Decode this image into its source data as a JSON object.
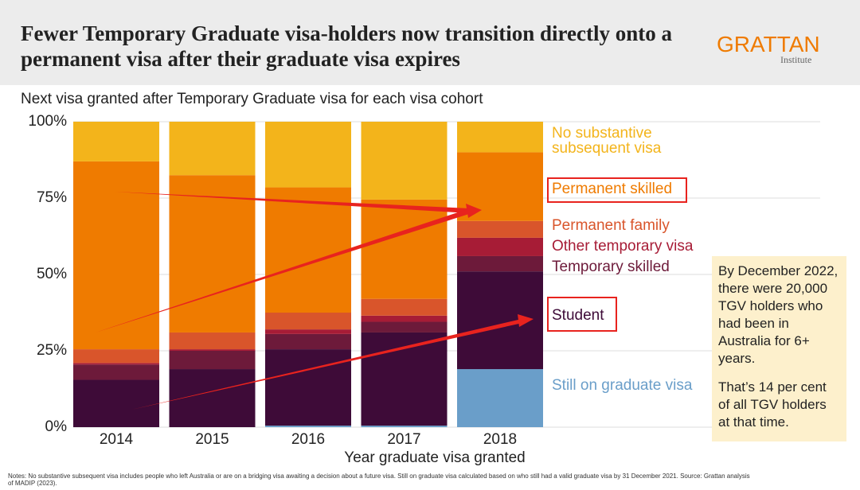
{
  "chart_data": {
    "type": "stacked-bar",
    "title": "Fewer Temporary Graduate visa-holders now transition directly onto a permanent visa after their graduate visa expires",
    "subtitle": "Next visa granted after Temporary Graduate visa for each visa cohort",
    "brand": "GRATTAN",
    "brand_sub": "Institute",
    "x_label": "Year graduate visa granted",
    "notes": "Notes: No substantive subsequent visa includes people who left Australia or are on a bridging visa awaiting a decision about a future visa. Still on graduate visa calculated based on who still had a valid graduate visa by 31 December 2021. Source: Grattan analysis of MADIP (2023).",
    "annotations": [
      "By December 2022, there were 20,000 TGV holders who had been in Australia for 6+ years.",
      "That’s 14 per cent of all TGV holders at that time."
    ],
    "categories": [
      "2014",
      "2015",
      "2016",
      "2017",
      "2018"
    ],
    "series": [
      {
        "name": "Still on graduate visa",
        "color": "#6a9ec9",
        "values": [
          0,
          0,
          0.5,
          0.5,
          19
        ]
      },
      {
        "name": "Student",
        "color": "#3e0b38",
        "values": [
          15.5,
          19,
          25,
          30.5,
          32
        ]
      },
      {
        "name": "Temporary skilled",
        "color": "#6d1a3a",
        "values": [
          5,
          6,
          5,
          3.5,
          5
        ]
      },
      {
        "name": "Other temporary visa",
        "color": "#a71c36",
        "values": [
          0.5,
          0.5,
          1.5,
          2,
          6
        ]
      },
      {
        "name": "Permanent family",
        "color": "#d9552b",
        "values": [
          4.5,
          5.5,
          5.5,
          5.5,
          5.5
        ]
      },
      {
        "name": "Permanent skilled",
        "color": "#ef7b00",
        "values": [
          61.5,
          51.5,
          41,
          32.5,
          22.5
        ]
      },
      {
        "name": "No substantive subsequent visa",
        "color": "#f3b41b",
        "values": [
          13,
          17.5,
          21.5,
          25.5,
          10
        ]
      }
    ],
    "ylim": [
      0,
      100
    ],
    "yticks": [
      {
        "value": 0,
        "label": "0%"
      },
      {
        "value": 25,
        "label": "25%"
      },
      {
        "value": 50,
        "label": "50%"
      },
      {
        "value": 75,
        "label": "75%"
      },
      {
        "value": 100,
        "label": "100%"
      }
    ],
    "grid": true
  }
}
